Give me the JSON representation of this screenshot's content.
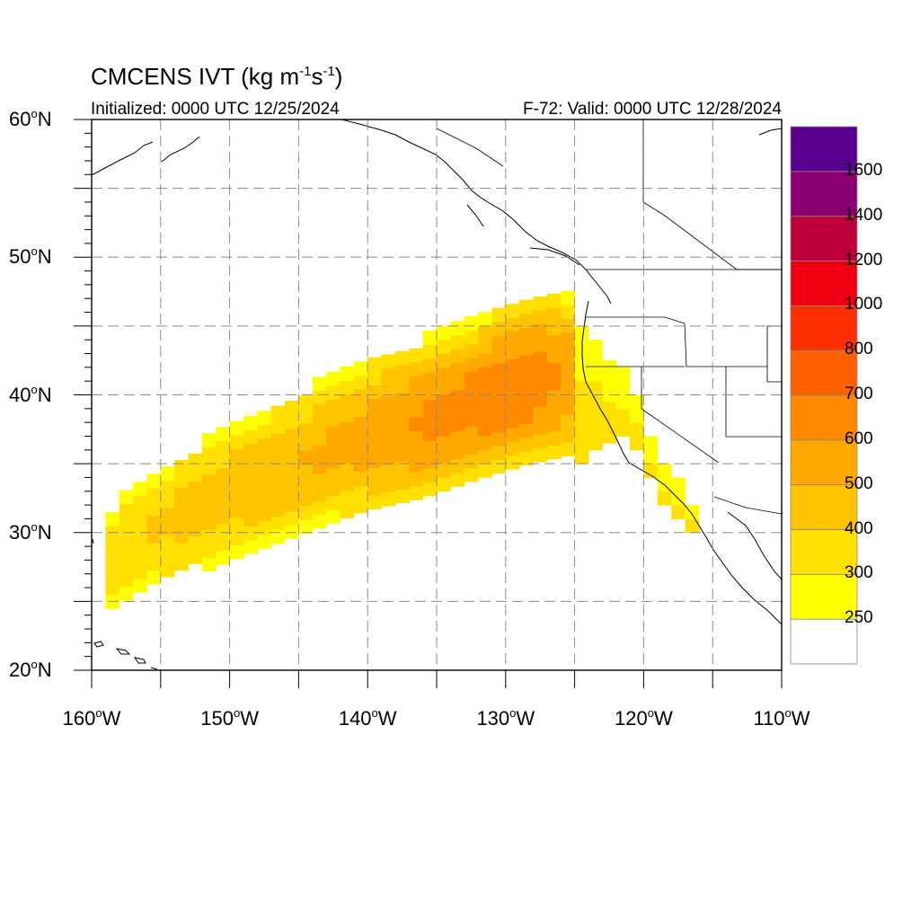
{
  "header": {
    "title": "CMCENS IVT (kg m",
    "title_exp1": "-1",
    "title_mid": "s",
    "title_exp2": "-1",
    "title_end": ")",
    "initialized": "Initialized: 0000 UTC 12/25/2024",
    "valid": "F-72: Valid: 0000 UTC 12/28/2024"
  },
  "axes": {
    "lat_ticks": [
      {
        "value": 60,
        "num": "60",
        "suffix": "N"
      },
      {
        "value": 50,
        "num": "50",
        "suffix": "N"
      },
      {
        "value": 40,
        "num": "40",
        "suffix": "N"
      },
      {
        "value": 30,
        "num": "30",
        "suffix": "N"
      },
      {
        "value": 20,
        "num": "20",
        "suffix": "N"
      }
    ],
    "lon_ticks": [
      {
        "value": -160,
        "num": "160",
        "suffix": "W"
      },
      {
        "value": -150,
        "num": "150",
        "suffix": "W"
      },
      {
        "value": -140,
        "num": "140",
        "suffix": "W"
      },
      {
        "value": -130,
        "num": "130",
        "suffix": "W"
      },
      {
        "value": -120,
        "num": "120",
        "suffix": "W"
      },
      {
        "value": -110,
        "num": "110",
        "suffix": "W"
      }
    ],
    "lat_range": [
      20,
      60
    ],
    "lon_range": [
      -160,
      -110
    ],
    "grid_interval": 5,
    "grid_style": "dashed"
  },
  "colorbar": {
    "levels": [
      "250",
      "300",
      "400",
      "500",
      "600",
      "700",
      "800",
      "1000",
      "1200",
      "1400",
      "1600"
    ],
    "colors": [
      "#ffffff",
      "#ffff00",
      "#ffe000",
      "#ffc400",
      "#ffa800",
      "#ff8a00",
      "#ff6000",
      "#ff3000",
      "#ee0010",
      "#c0003c",
      "#8a0070",
      "#5a0090"
    ]
  },
  "chart_data": {
    "type": "heatmap",
    "variable": "IVT",
    "units": "kg m-1 s-1",
    "region": {
      "lon": [
        -160,
        -110
      ],
      "lat": [
        20,
        60
      ]
    },
    "river_axis": [
      {
        "lon": -159,
        "lat": 28,
        "ivt": 350
      },
      {
        "lon": -155,
        "lat": 30.5,
        "ivt": 420
      },
      {
        "lon": -150,
        "lat": 33,
        "ivt": 470
      },
      {
        "lon": -145,
        "lat": 35,
        "ivt": 500
      },
      {
        "lon": -140,
        "lat": 37,
        "ivt": 560
      },
      {
        "lon": -136,
        "lat": 38,
        "ivt": 620
      },
      {
        "lon": -132,
        "lat": 39.5,
        "ivt": 660
      },
      {
        "lon": -128,
        "lat": 40.8,
        "ivt": 680
      },
      {
        "lon": -125,
        "lat": 41.5,
        "ivt": 560
      },
      {
        "lon": -121,
        "lat": 39.5,
        "ivt": 320
      },
      {
        "lon": -118,
        "lat": 31.5,
        "ivt": 300
      }
    ]
  }
}
